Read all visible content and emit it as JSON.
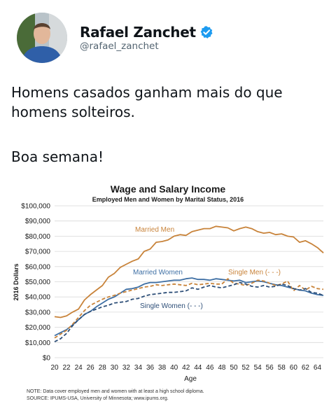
{
  "tweet": {
    "author_name": "Rafael Zanchet",
    "author_handle": "@rafael_zanchet",
    "text_line_1": "Homens casados ganham mais do que homens solteiros.",
    "text_line_2": "Boa semana!"
  },
  "icons": {
    "verified": "verified-badge-icon",
    "avatar": "profile-photo"
  },
  "colors": {
    "married_men": "#c8833a",
    "married_women": "#3e6fa4",
    "single_men": "#c8833a",
    "single_women": "#2e4f78",
    "verified_blue": "#1d9bf0",
    "gridline": "#d9d9d9"
  },
  "chart_data": {
    "type": "line",
    "title": "Wage and Salary Income",
    "subtitle": "Employed Men and Women by Marital Status, 2016",
    "xlabel": "Age",
    "ylabel": "2016 Dollars",
    "ylim": [
      0,
      100000
    ],
    "y_ticks": [
      "$0",
      "$10,000",
      "$20,000",
      "$30,000",
      "$40,000",
      "$50,000",
      "$60,000",
      "$70,000",
      "$80,000",
      "$90,000",
      "$100,000"
    ],
    "x_ticks": [
      "20",
      "22",
      "24",
      "26",
      "28",
      "30",
      "32",
      "34",
      "36",
      "38",
      "40",
      "42",
      "44",
      "46",
      "48",
      "50",
      "52",
      "54",
      "56",
      "58",
      "60",
      "62",
      "64"
    ],
    "grid": true,
    "x": [
      20,
      21,
      22,
      23,
      24,
      25,
      26,
      27,
      28,
      29,
      30,
      31,
      32,
      33,
      34,
      35,
      36,
      37,
      38,
      39,
      40,
      41,
      42,
      43,
      44,
      45,
      46,
      47,
      48,
      49,
      50,
      51,
      52,
      53,
      54,
      55,
      56,
      57,
      58,
      59,
      60,
      61,
      62,
      63,
      64,
      65
    ],
    "series": [
      {
        "name": "Married Men",
        "style": "solid",
        "values": [
          27000,
          26500,
          27500,
          30000,
          32000,
          38000,
          41500,
          44500,
          47500,
          53000,
          55500,
          59500,
          61500,
          63500,
          65000,
          70000,
          71500,
          76000,
          76500,
          77500,
          80000,
          81000,
          80500,
          83000,
          84000,
          85000,
          85000,
          86500,
          86000,
          85500,
          83500,
          85000,
          86000,
          85000,
          83000,
          82000,
          82500,
          81000,
          81500,
          80000,
          79500,
          76000,
          77000,
          75000,
          72500,
          69000
        ]
      },
      {
        "name": "Married Women",
        "style": "solid",
        "values": [
          14500,
          16500,
          18500,
          21500,
          25000,
          28500,
          30500,
          33500,
          36000,
          38500,
          40000,
          42500,
          45000,
          45500,
          46500,
          48500,
          49500,
          49500,
          50000,
          50500,
          51000,
          51000,
          52000,
          52500,
          51500,
          51500,
          51000,
          52000,
          51500,
          51000,
          50500,
          51000,
          49500,
          50000,
          50500,
          50000,
          49000,
          48000,
          47500,
          46500,
          45500,
          44500,
          44000,
          42500,
          41500,
          41000
        ]
      },
      {
        "name": "Single Men (- - -)",
        "style": "dashed",
        "values": [
          13000,
          15500,
          18000,
          22000,
          26500,
          31000,
          34500,
          36500,
          38500,
          40000,
          41000,
          42500,
          43500,
          44500,
          45500,
          46500,
          47000,
          48000,
          47500,
          48000,
          48500,
          48000,
          47500,
          49000,
          48000,
          48500,
          49000,
          48500,
          48500,
          52000,
          49000,
          48500,
          47500,
          49000,
          51000,
          50500,
          49000,
          47500,
          48500,
          50500,
          44000,
          47500,
          44500,
          47000,
          45500,
          45000
        ]
      },
      {
        "name": "Single Women (- - -)",
        "style": "dashed",
        "values": [
          10500,
          12500,
          16000,
          21000,
          25000,
          28500,
          30500,
          32000,
          33500,
          34500,
          36000,
          36500,
          37000,
          38500,
          39000,
          40500,
          41500,
          42000,
          42500,
          43000,
          43000,
          43500,
          44000,
          46000,
          45000,
          46500,
          47500,
          46500,
          46000,
          47000,
          48000,
          49500,
          48500,
          47000,
          46500,
          47500,
          46500,
          47000,
          48500,
          47500,
          45500,
          44500,
          45500,
          43000,
          42500,
          41000
        ]
      }
    ],
    "notes": [
      "NOTE: Data cover employed men and women with at least a high school diploma.",
      "SOURCE: IPUMS-USA, University of Minnesota; www.ipums.org."
    ]
  }
}
